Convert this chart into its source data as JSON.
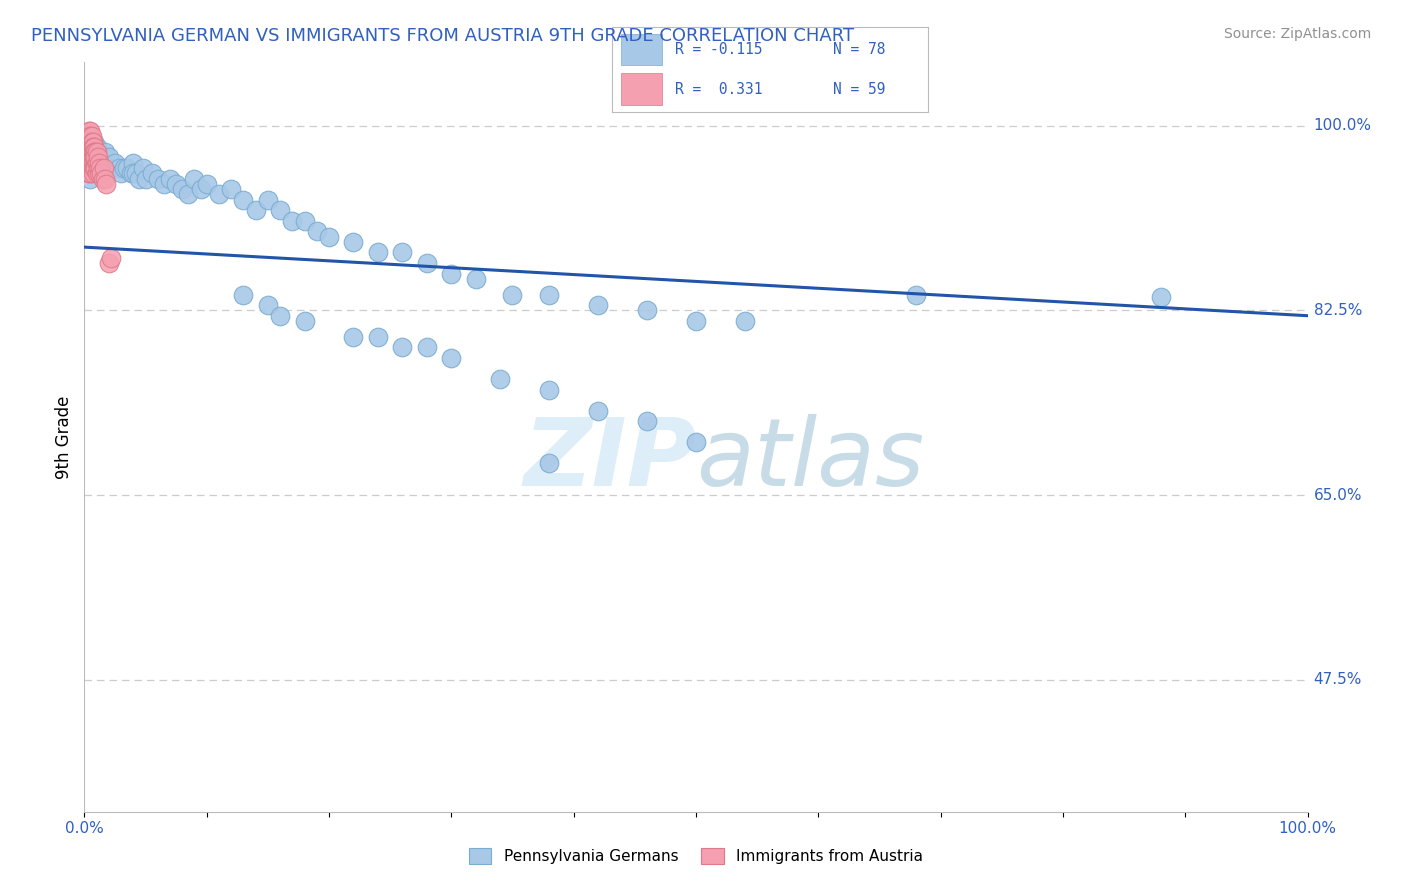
{
  "title": "PENNSYLVANIA GERMAN VS IMMIGRANTS FROM AUSTRIA 9TH GRADE CORRELATION CHART",
  "source": "Source: ZipAtlas.com",
  "ylabel": "9th Grade",
  "legend_r1": "R = -0.115",
  "legend_n1": "N = 78",
  "legend_r2": "R =  0.331",
  "legend_n2": "N = 59",
  "blue_color": "#a8c8e8",
  "blue_edge_color": "#7aadd0",
  "pink_color": "#f4a0b0",
  "pink_edge_color": "#e07888",
  "trend_color": "#2255aa",
  "watermark_color": "#ddeef8",
  "grid_color": "#cccccc",
  "axis_color": "#bbbbbb",
  "label_color": "#3060c0",
  "blue_scatter_x": [
    0.005,
    0.005,
    0.005,
    0.005,
    0.005,
    0.007,
    0.007,
    0.008,
    0.01,
    0.01,
    0.012,
    0.013,
    0.015,
    0.015,
    0.017,
    0.02,
    0.022,
    0.025,
    0.028,
    0.03,
    0.032,
    0.035,
    0.038,
    0.04,
    0.04,
    0.042,
    0.045,
    0.048,
    0.05,
    0.055,
    0.06,
    0.065,
    0.07,
    0.075,
    0.08,
    0.085,
    0.09,
    0.095,
    0.1,
    0.11,
    0.12,
    0.13,
    0.14,
    0.15,
    0.16,
    0.17,
    0.18,
    0.19,
    0.2,
    0.22,
    0.24,
    0.26,
    0.28,
    0.3,
    0.32,
    0.35,
    0.38,
    0.42,
    0.46,
    0.5,
    0.54,
    0.13,
    0.15,
    0.16,
    0.18,
    0.22,
    0.24,
    0.26,
    0.28,
    0.3,
    0.34,
    0.38,
    0.42,
    0.46,
    0.5,
    0.68,
    0.88,
    0.38
  ],
  "blue_scatter_y": [
    0.99,
    0.98,
    0.97,
    0.96,
    0.95,
    0.975,
    0.965,
    0.985,
    0.98,
    0.97,
    0.965,
    0.96,
    0.97,
    0.96,
    0.975,
    0.97,
    0.96,
    0.965,
    0.96,
    0.955,
    0.96,
    0.96,
    0.955,
    0.965,
    0.955,
    0.955,
    0.95,
    0.96,
    0.95,
    0.955,
    0.95,
    0.945,
    0.95,
    0.945,
    0.94,
    0.935,
    0.95,
    0.94,
    0.945,
    0.935,
    0.94,
    0.93,
    0.92,
    0.93,
    0.92,
    0.91,
    0.91,
    0.9,
    0.895,
    0.89,
    0.88,
    0.88,
    0.87,
    0.86,
    0.855,
    0.84,
    0.84,
    0.83,
    0.825,
    0.815,
    0.815,
    0.84,
    0.83,
    0.82,
    0.815,
    0.8,
    0.8,
    0.79,
    0.79,
    0.78,
    0.76,
    0.75,
    0.73,
    0.72,
    0.7,
    0.84,
    0.838,
    0.68
  ],
  "pink_scatter_x": [
    0.003,
    0.003,
    0.003,
    0.003,
    0.003,
    0.004,
    0.004,
    0.004,
    0.004,
    0.004,
    0.004,
    0.004,
    0.004,
    0.004,
    0.005,
    0.005,
    0.005,
    0.005,
    0.005,
    0.005,
    0.005,
    0.005,
    0.005,
    0.006,
    0.006,
    0.006,
    0.006,
    0.006,
    0.006,
    0.006,
    0.007,
    0.007,
    0.007,
    0.007,
    0.007,
    0.007,
    0.007,
    0.008,
    0.008,
    0.008,
    0.008,
    0.009,
    0.009,
    0.009,
    0.01,
    0.01,
    0.01,
    0.011,
    0.011,
    0.012,
    0.012,
    0.013,
    0.014,
    0.015,
    0.016,
    0.017,
    0.018,
    0.02,
    0.022
  ],
  "pink_scatter_y": [
    0.99,
    0.985,
    0.98,
    0.975,
    0.97,
    0.995,
    0.99,
    0.985,
    0.98,
    0.975,
    0.97,
    0.965,
    0.96,
    0.955,
    0.995,
    0.99,
    0.985,
    0.98,
    0.975,
    0.97,
    0.965,
    0.96,
    0.955,
    0.99,
    0.985,
    0.98,
    0.975,
    0.97,
    0.965,
    0.96,
    0.985,
    0.98,
    0.975,
    0.97,
    0.965,
    0.96,
    0.955,
    0.98,
    0.975,
    0.97,
    0.96,
    0.975,
    0.97,
    0.96,
    0.975,
    0.965,
    0.955,
    0.97,
    0.96,
    0.965,
    0.955,
    0.96,
    0.955,
    0.95,
    0.96,
    0.95,
    0.945,
    0.87,
    0.875
  ],
  "trend_x0": 0.0,
  "trend_x1": 1.0,
  "trend_y0": 0.885,
  "trend_y1": 0.82,
  "xlim": [
    0.0,
    1.0
  ],
  "ylim": [
    0.35,
    1.06
  ],
  "ytick_positions": [
    0.475,
    0.65,
    0.825,
    1.0
  ],
  "ytick_labels": [
    "47.5%",
    "65.0%",
    "82.5%",
    "100.0%"
  ],
  "marker_size": 180
}
